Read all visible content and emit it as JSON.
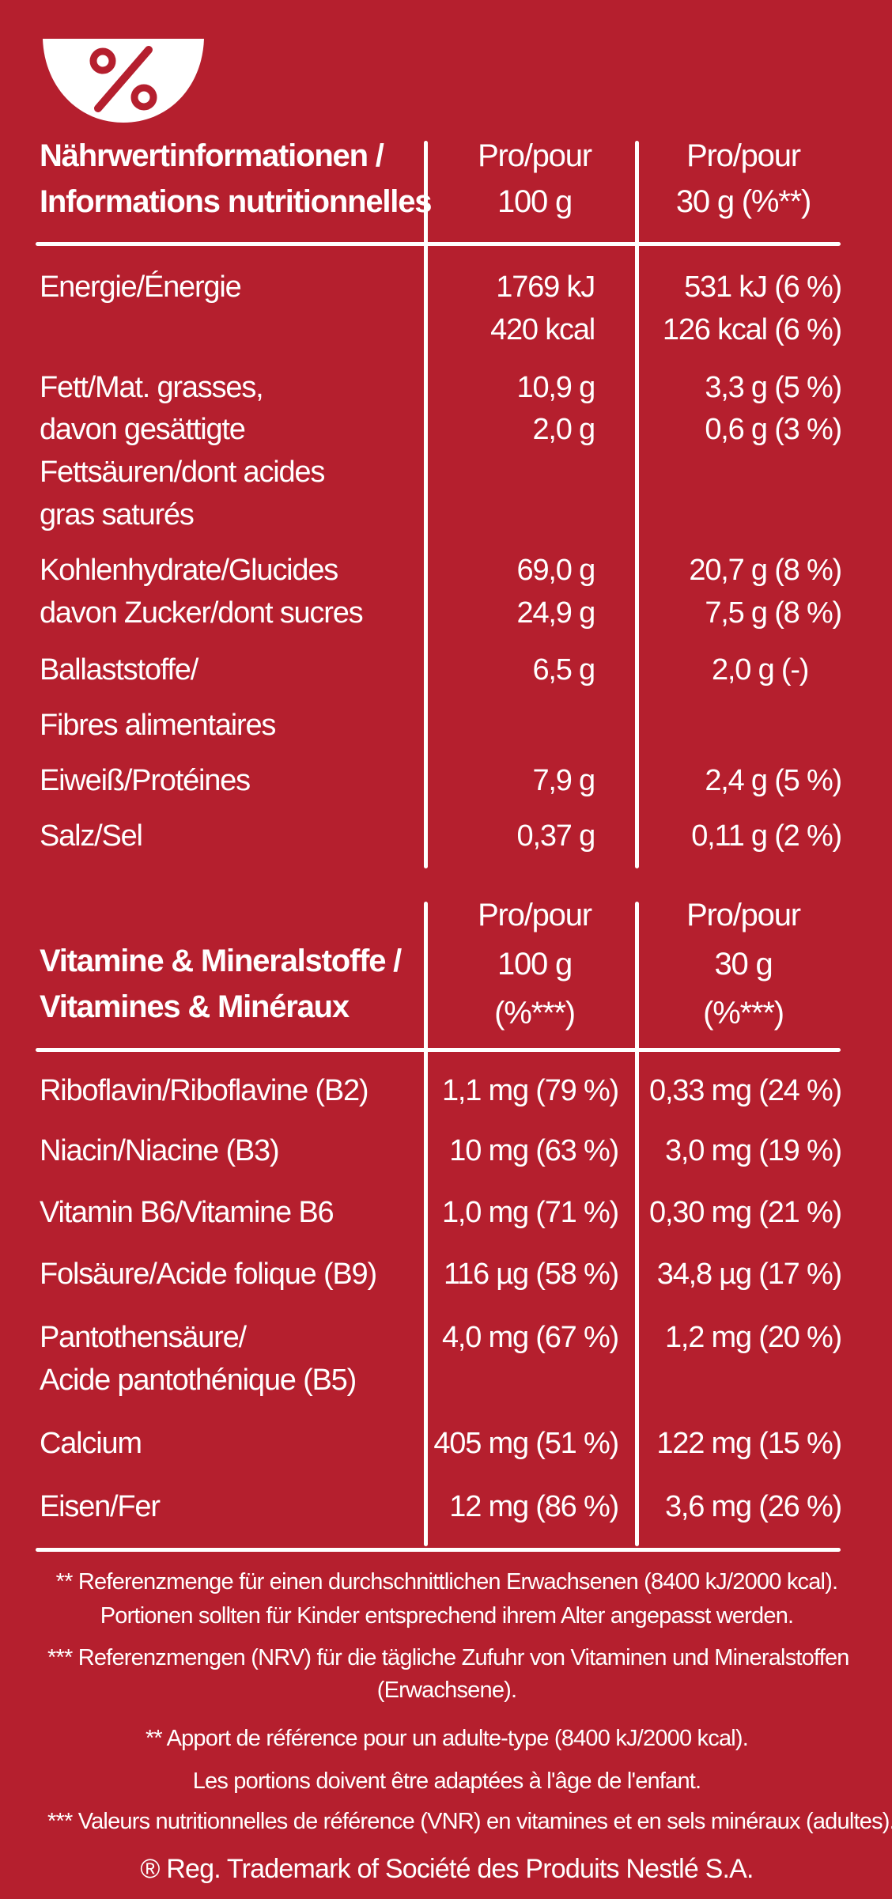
{
  "icon": "bowl-percent-icon",
  "colors": {
    "background": "#b51f2e",
    "foreground": "#ffffff"
  },
  "nutrition": {
    "header": {
      "label_line1": "Nährwertinformationen /",
      "label_line2": "Informations nutritionnelles",
      "col1_line1": "Pro/pour",
      "col1_line2": "100 g",
      "col2_line1": "Pro/pour",
      "col2_line2": "30 g (%**)"
    },
    "rows": [
      {
        "label": [
          "Energie/Énergie"
        ],
        "v100": [
          "1769 kJ",
          "420 kcal"
        ],
        "v30": [
          "531 kJ (6 %)",
          "126 kcal (6 %)"
        ]
      },
      {
        "label": [
          "Fett/Mat. grasses,"
        ],
        "v100": [
          "10,9 g"
        ],
        "v30": [
          "3,3 g (5 %)"
        ]
      },
      {
        "label": [
          "davon gesättigte",
          "Fettsäuren/dont acides",
          "gras saturés"
        ],
        "v100": [
          "2,0 g"
        ],
        "v30": [
          "0,6 g (3 %)"
        ]
      },
      {
        "label": [
          "Kohlenhydrate/Glucides"
        ],
        "v100": [
          "69,0 g"
        ],
        "v30": [
          "20,7 g (8 %)"
        ]
      },
      {
        "label": [
          "davon Zucker/dont sucres"
        ],
        "v100": [
          "24,9 g"
        ],
        "v30": [
          "7,5 g (8 %)"
        ]
      },
      {
        "label": [
          "Ballaststoffe/"
        ],
        "v100": [
          "6,5 g"
        ],
        "v30": [
          "2,0 g (-)"
        ]
      },
      {
        "label": [
          "Fibres alimentaires"
        ],
        "v100": [],
        "v30": []
      },
      {
        "label": [
          "Eiweiß/Protéines"
        ],
        "v100": [
          "7,9 g"
        ],
        "v30": [
          "2,4 g (5 %)"
        ]
      },
      {
        "label": [
          "Salz/Sel"
        ],
        "v100": [
          "0,37 g"
        ],
        "v30": [
          "0,11 g (2 %)"
        ]
      }
    ]
  },
  "vitamins": {
    "header": {
      "label_line1": "Vitamine & Mineralstoffe /",
      "label_line2": "Vitamines & Minéraux",
      "col1_line1": "Pro/pour",
      "col1_line2": "100 g",
      "col1_line3": "(%***)",
      "col2_line1": "Pro/pour",
      "col2_line2": "30 g",
      "col2_line3": "(%***)"
    },
    "rows": [
      {
        "label": [
          "Riboflavin/Riboflavine (B2)"
        ],
        "v100": "1,1 mg (79 %)",
        "v30": "0,33 mg (24 %)"
      },
      {
        "label": [
          "Niacin/Niacine (B3)"
        ],
        "v100": "10 mg (63 %)",
        "v30": "3,0 mg (19 %)"
      },
      {
        "label": [
          "Vitamin B6/Vitamine B6"
        ],
        "v100": "1,0 mg (71 %)",
        "v30": "0,30 mg (21 %)"
      },
      {
        "label": [
          "Folsäure/Acide folique (B9)"
        ],
        "v100": "116 µg (58 %)",
        "v30": "34,8 µg (17 %)"
      },
      {
        "label": [
          "Pantothensäure/",
          "Acide pantothénique (B5)"
        ],
        "v100": "4,0 mg (67 %)",
        "v30": "1,2 mg (20 %)"
      },
      {
        "label": [
          "Calcium"
        ],
        "v100": "405 mg (51 %)",
        "v30": "122 mg (15 %)"
      },
      {
        "label": [
          "Eisen/Fer"
        ],
        "v100": "12 mg (86 %)",
        "v30": "3,6 mg (26 %)"
      }
    ]
  },
  "footnotes": [
    "** Referenzmenge für einen durchschnittlichen Erwachsenen (8400 kJ/2000 kcal).",
    "Portionen sollten für Kinder entsprechend ihrem Alter angepasst werden.",
    "*** Referenzmengen (NRV) für die tägliche Zufuhr von Vitaminen und Mineralstoffen",
    "(Erwachsene).",
    "** Apport de référence pour un adulte-type (8400 kJ/2000 kcal).",
    "Les portions doivent être adaptées à l'âge de l'enfant.",
    "*** Valeurs nutritionnelles de référence (VNR) en vitamines et en sels minéraux (adultes)."
  ],
  "trademark": "® Reg. Trademark of Société des Produits Nestlé S.A."
}
